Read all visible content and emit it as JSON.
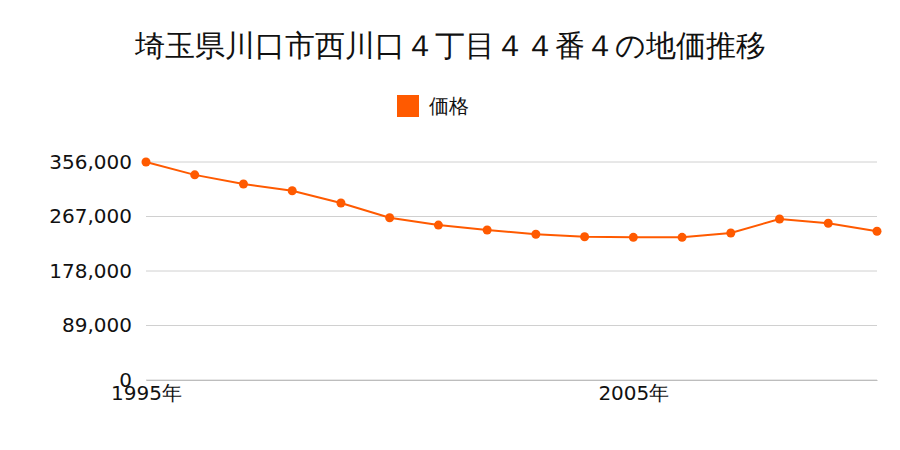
{
  "chart_data": {
    "type": "line",
    "title": "埼玉県川口市西川口４丁目４４番４の地価推移",
    "x": [
      1995,
      1996,
      1997,
      1998,
      1999,
      2000,
      2001,
      2002,
      2003,
      2004,
      2005,
      2006,
      2007,
      2008,
      2009,
      2010
    ],
    "series": [
      {
        "name": "価格",
        "color": "#ff5a00",
        "marker": "circle",
        "values": [
          356000,
          335000,
          320000,
          309000,
          289000,
          265000,
          253000,
          245000,
          238000,
          234000,
          233000,
          233000,
          240000,
          263000,
          256000,
          243000
        ]
      }
    ],
    "xlim": [
      1995,
      2010
    ],
    "xticks": [
      {
        "value": 1995,
        "label": "1995年"
      },
      {
        "value": 2005,
        "label": "2005年"
      }
    ],
    "ylim": [
      0,
      356000
    ],
    "yticks": [
      0,
      {
        "value": 89000,
        "label": "89,000"
      },
      {
        "value": 178000,
        "label": "178,000"
      },
      {
        "value": 267000,
        "label": "267,000"
      },
      {
        "value": 356000,
        "label": "356,000"
      }
    ],
    "grid": true
  }
}
